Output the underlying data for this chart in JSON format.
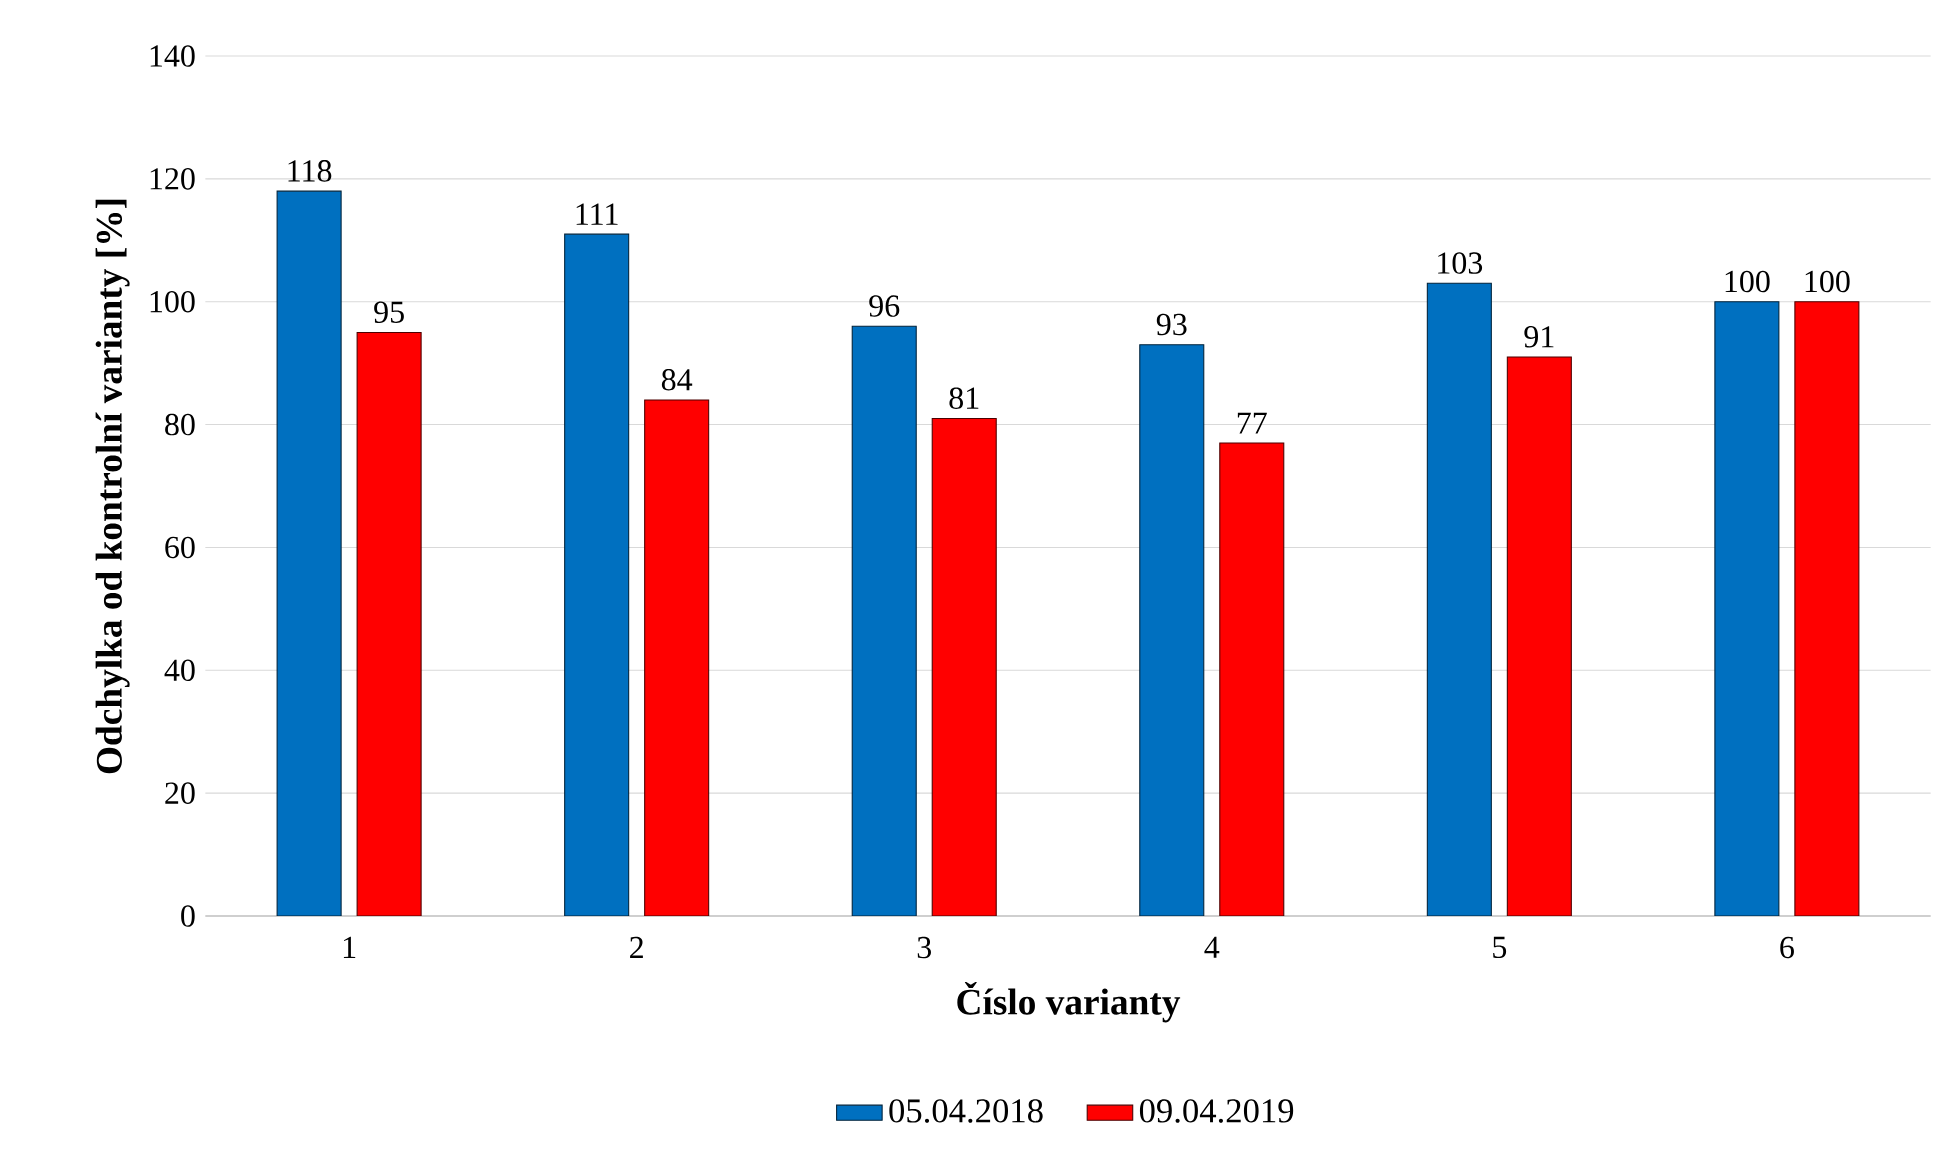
{
  "chart_data": {
    "type": "bar",
    "xlabel": "Číslo varianty",
    "ylabel": "Odchylka od kontrolní varianty [%]",
    "categories": [
      "1",
      "2",
      "3",
      "4",
      "5",
      "6"
    ],
    "series": [
      {
        "name": "05.04.2018",
        "color": "#0070c0",
        "values": [
          118,
          111,
          96,
          93,
          103,
          100
        ]
      },
      {
        "name": "09.04.2019",
        "color": "#ff0000",
        "values": [
          95,
          84,
          81,
          77,
          91,
          100
        ]
      }
    ],
    "ylim": [
      0,
      140
    ],
    "yticks": [
      0,
      20,
      40,
      60,
      80,
      100,
      120,
      140
    ],
    "grid": "y",
    "legend": "bottom",
    "data_labels": true
  }
}
